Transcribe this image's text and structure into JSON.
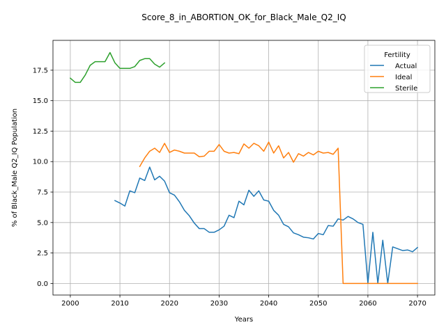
{
  "chart_data": {
    "type": "line",
    "title": "Score_8_in_ABORTION_OK_for_Black_Male_Q2_IQ",
    "xlabel": "Years",
    "ylabel": "% of Black_Male Q2_IQ Population",
    "xlim": [
      1996.5,
      2073.5
    ],
    "ylim": [
      -0.95,
      19.95
    ],
    "x_ticks": [
      2000,
      2010,
      2020,
      2030,
      2040,
      2050,
      2060,
      2070
    ],
    "x_tick_labels": [
      "2000",
      "2010",
      "2020",
      "2030",
      "2040",
      "2050",
      "2060",
      "2070"
    ],
    "y_ticks": [
      0.0,
      2.5,
      5.0,
      7.5,
      10.0,
      12.5,
      15.0,
      17.5
    ],
    "y_tick_labels": [
      "0.0",
      "2.5",
      "5.0",
      "7.5",
      "10.0",
      "12.5",
      "15.0",
      "17.5"
    ],
    "grid": true,
    "legend": {
      "title": "Fertility",
      "position": "top-right"
    },
    "series": [
      {
        "name": "Actual",
        "color": "#1f77b4",
        "x": [
          2009,
          2010,
          2011,
          2012,
          2013,
          2014,
          2015,
          2016,
          2017,
          2018,
          2019,
          2020,
          2021,
          2022,
          2023,
          2024,
          2025,
          2026,
          2027,
          2028,
          2029,
          2030,
          2031,
          2032,
          2033,
          2034,
          2035,
          2036,
          2037,
          2038,
          2039,
          2040,
          2041,
          2042,
          2043,
          2044,
          2045,
          2046,
          2047,
          2048,
          2049,
          2050,
          2051,
          2052,
          2053,
          2054,
          2055,
          2056,
          2057,
          2058,
          2059,
          2060,
          2061,
          2062,
          2063,
          2064,
          2065,
          2066,
          2067,
          2068,
          2069,
          2070
        ],
        "y": [
          6.8,
          6.6,
          6.35,
          7.6,
          7.45,
          8.65,
          8.45,
          9.55,
          8.5,
          8.8,
          8.4,
          7.45,
          7.25,
          6.7,
          6.0,
          5.55,
          4.95,
          4.5,
          4.5,
          4.2,
          4.2,
          4.4,
          4.7,
          5.6,
          5.4,
          6.75,
          6.45,
          7.65,
          7.15,
          7.6,
          6.85,
          6.75,
          6.0,
          5.6,
          4.85,
          4.65,
          4.15,
          4.0,
          3.8,
          3.75,
          3.65,
          4.1,
          4.0,
          4.75,
          4.7,
          5.3,
          5.2,
          5.5,
          5.3,
          5.0,
          4.85,
          0.0,
          4.2,
          0.0,
          3.55,
          0.0,
          3.0,
          2.85,
          2.7,
          2.75,
          2.6,
          2.95
        ]
      },
      {
        "name": "Ideal",
        "color": "#ff7f0e",
        "x": [
          2014,
          2015,
          2016,
          2017,
          2018,
          2019,
          2020,
          2021,
          2022,
          2023,
          2024,
          2025,
          2026,
          2027,
          2028,
          2029,
          2030,
          2031,
          2032,
          2033,
          2034,
          2035,
          2036,
          2037,
          2038,
          2039,
          2040,
          2041,
          2042,
          2043,
          2044,
          2045,
          2046,
          2047,
          2048,
          2049,
          2050,
          2051,
          2052,
          2053,
          2054,
          2055,
          2056,
          2057,
          2058,
          2059,
          2060,
          2061,
          2062,
          2063,
          2064,
          2065,
          2066,
          2067,
          2068,
          2069,
          2070
        ],
        "y": [
          9.6,
          10.3,
          10.85,
          11.1,
          10.75,
          11.5,
          10.75,
          10.95,
          10.85,
          10.7,
          10.7,
          10.7,
          10.4,
          10.45,
          10.85,
          10.85,
          11.4,
          10.85,
          10.7,
          10.75,
          10.65,
          11.45,
          11.1,
          11.5,
          11.3,
          10.85,
          11.6,
          10.7,
          11.3,
          10.3,
          10.75,
          9.95,
          10.65,
          10.45,
          10.75,
          10.55,
          10.85,
          10.7,
          10.75,
          10.6,
          11.1,
          0.0,
          0.0,
          0.0,
          0.0,
          0.0,
          0.0,
          0.0,
          0.0,
          0.0,
          0.0,
          0.0,
          0.0,
          0.0,
          0.0,
          0.0,
          0.0
        ]
      },
      {
        "name": "Sterile",
        "color": "#2ca02c",
        "x": [
          2000,
          2001,
          2002,
          2003,
          2004,
          2005,
          2006,
          2007,
          2008,
          2009,
          2010,
          2011,
          2012,
          2013,
          2014,
          2015,
          2016,
          2017,
          2018,
          2019
        ],
        "y": [
          16.85,
          16.5,
          16.5,
          17.1,
          17.9,
          18.2,
          18.2,
          18.2,
          18.95,
          18.1,
          17.65,
          17.65,
          17.65,
          17.8,
          18.3,
          18.45,
          18.45,
          18.0,
          17.75,
          18.1
        ]
      }
    ]
  }
}
